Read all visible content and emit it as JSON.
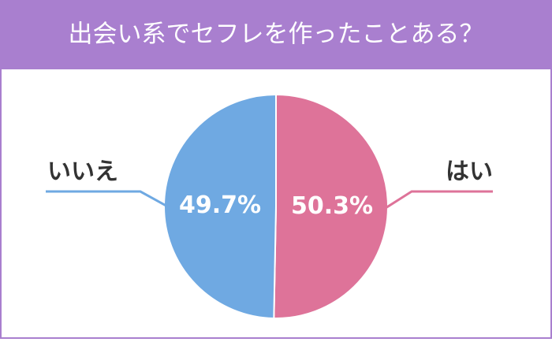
{
  "chart_data": {
    "type": "pie",
    "title": "出会い系でセフレを作ったことある？",
    "categories": [
      "はい",
      "いいえ"
    ],
    "values": [
      50.3,
      49.7
    ],
    "value_labels": [
      "50.3%",
      "49.7%"
    ],
    "colors": [
      "#de7399",
      "#6fa9e2"
    ]
  }
}
